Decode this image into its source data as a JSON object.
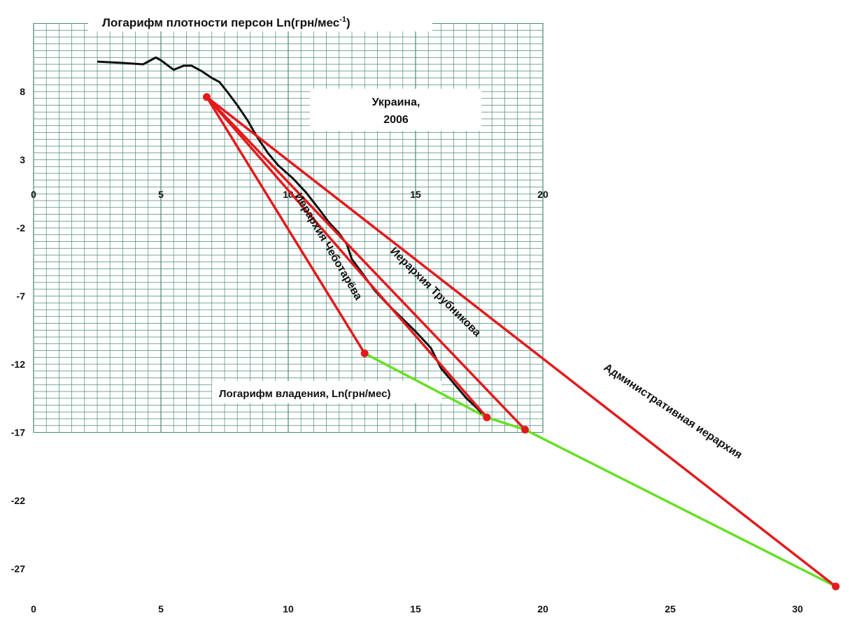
{
  "chart_data": {
    "type": "line",
    "xlim": [
      0,
      33
    ],
    "ylim": [
      -30,
      13
    ],
    "x_ticks": [
      "0",
      "5",
      "10",
      "15",
      "20",
      "25",
      "30"
    ],
    "y_ticks": [
      "8",
      "3",
      "-2",
      "-7",
      "-12",
      "-17",
      "-22",
      "-27"
    ],
    "inset": {
      "xlim": [
        0,
        20
      ],
      "ylim": [
        -17,
        13
      ],
      "grid": true,
      "x_ticks": [
        "0",
        "5",
        "10",
        "15",
        "20"
      ]
    },
    "inset_title": "Логарифм плотности персон Ln(грн/мес",
    "inset_title_sup": "-1",
    "inset_title_end": ")",
    "inset_xlabel": "Логарифм владения, Ln(грн/мес)",
    "country": "Украина,",
    "year": "2006",
    "density_curve": {
      "color": "#111111",
      "points": [
        [
          2.5,
          10.2
        ],
        [
          3.5,
          10.1
        ],
        [
          4.3,
          10.0
        ],
        [
          4.8,
          10.5
        ],
        [
          5.0,
          10.3
        ],
        [
          5.5,
          9.6
        ],
        [
          5.9,
          9.9
        ],
        [
          6.2,
          9.9
        ],
        [
          6.6,
          9.5
        ],
        [
          7.0,
          9.0
        ],
        [
          7.3,
          8.7
        ],
        [
          7.6,
          8.0
        ],
        [
          8.0,
          7.0
        ],
        [
          8.4,
          5.9
        ],
        [
          8.8,
          4.6
        ],
        [
          9.2,
          3.5
        ],
        [
          9.6,
          2.6
        ],
        [
          10.2,
          1.6
        ],
        [
          10.7,
          0.6
        ],
        [
          11.2,
          -0.6
        ],
        [
          11.6,
          -1.6
        ],
        [
          12.0,
          -2.4
        ],
        [
          12.3,
          -3.2
        ],
        [
          12.5,
          -4.3
        ],
        [
          12.9,
          -5.3
        ],
        [
          13.4,
          -6.6
        ],
        [
          13.9,
          -7.6
        ],
        [
          14.4,
          -8.5
        ],
        [
          15.0,
          -9.6
        ],
        [
          15.6,
          -10.8
        ],
        [
          16.0,
          -12.3
        ],
        [
          16.5,
          -13.4
        ],
        [
          17.0,
          -14.5
        ],
        [
          17.4,
          -15.2
        ],
        [
          17.6,
          -15.6
        ]
      ]
    },
    "hierarchy_lines": {
      "color": "#e31a1c",
      "origin": [
        6.8,
        7.6
      ],
      "series": [
        {
          "name": "Иерархия Чеботарёва",
          "end": [
            13.0,
            -11.2
          ]
        },
        {
          "name": "Иерархия Трубникова",
          "end": [
            17.8,
            -15.9
          ]
        },
        {
          "name": "Административная иерархия",
          "end": [
            31.5,
            -28.3
          ]
        }
      ],
      "extra_endpoint": [
        19.3,
        -16.8
      ]
    },
    "green_line": {
      "color": "#66e026",
      "points": [
        [
          13.0,
          -11.2
        ],
        [
          17.8,
          -15.9
        ],
        [
          19.3,
          -16.8
        ],
        [
          31.5,
          -28.3
        ]
      ]
    },
    "grid_color": "#4a8a78"
  }
}
